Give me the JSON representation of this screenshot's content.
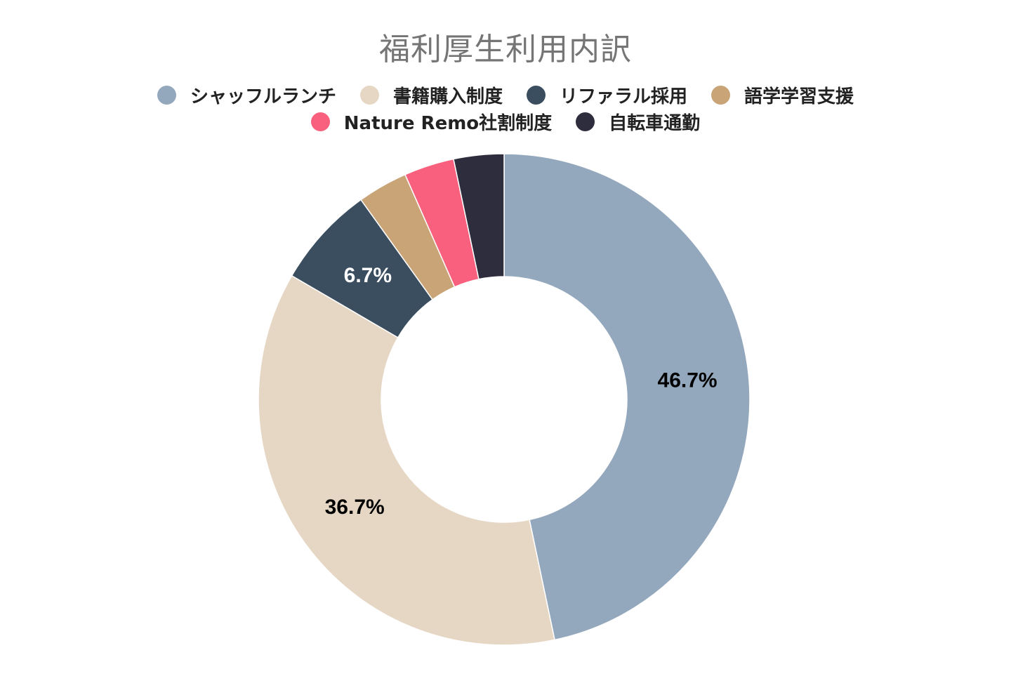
{
  "chart_data": {
    "type": "pie",
    "title": "福利厚生利用内訳",
    "categories": [
      "シャッフルランチ",
      "書籍購入制度",
      "リファラル採用",
      "語学学習支援",
      "Nature Remo社割制度",
      "自転車通勤"
    ],
    "values": [
      46.7,
      36.7,
      6.7,
      3.3,
      3.3,
      3.3
    ],
    "data_labels": [
      "46.7%",
      "36.7%",
      "6.7%",
      "",
      "",
      ""
    ],
    "colors": [
      "#94a8bd",
      "#e6d7c5",
      "#3b4e5f",
      "#c9a477",
      "#f8607d",
      "#2e2d3e"
    ],
    "label_colors": [
      "#000000",
      "#000000",
      "#ffffff",
      "#000000",
      "#ffffff",
      "#ffffff"
    ],
    "legend_rows": [
      [
        0,
        1,
        2,
        3
      ],
      [
        4,
        5
      ]
    ],
    "legend_position": "top",
    "donut": true
  }
}
